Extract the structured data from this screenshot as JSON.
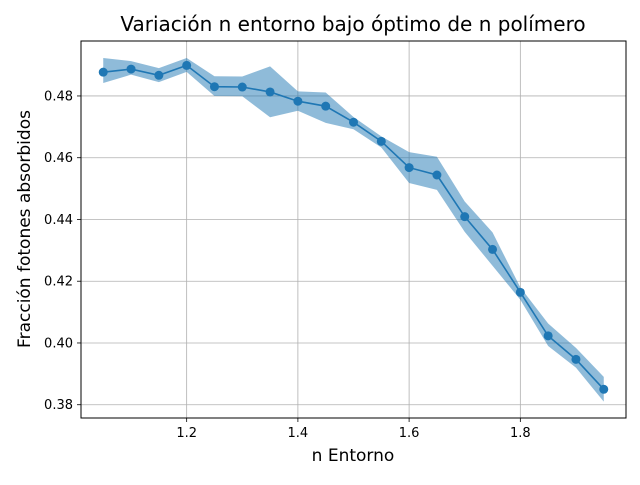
{
  "chart_data": {
    "type": "line",
    "title": "Variación n entorno bajo óptimo de n polímero",
    "xlabel": "n Entorno",
    "ylabel": "Fracción fotones absorbidos",
    "xlim": [
      1.01,
      1.99
    ],
    "ylim": [
      0.3757,
      0.4978
    ],
    "grid": true,
    "x_ticks": [
      1.2,
      1.4,
      1.6,
      1.8
    ],
    "x_tick_labels": [
      "1.2",
      "1.4",
      "1.6",
      "1.8"
    ],
    "y_ticks": [
      0.38,
      0.4,
      0.42,
      0.44,
      0.46,
      0.48
    ],
    "y_tick_labels": [
      "0.38",
      "0.40",
      "0.42",
      "0.44",
      "0.46",
      "0.48"
    ],
    "series": [
      {
        "x": [
          1.05,
          1.1,
          1.15,
          1.2,
          1.25,
          1.3,
          1.35,
          1.4,
          1.45,
          1.5,
          1.55,
          1.6,
          1.65,
          1.7,
          1.75,
          1.8,
          1.85,
          1.9,
          1.95
        ],
        "values": [
          0.4877,
          0.4887,
          0.4867,
          0.4899,
          0.483,
          0.4829,
          0.4813,
          0.4783,
          0.4767,
          0.4715,
          0.4653,
          0.4568,
          0.4544,
          0.4409,
          0.4303,
          0.4164,
          0.4023,
          0.3947,
          0.385
        ],
        "band_upper": [
          0.4923,
          0.4913,
          0.489,
          0.4923,
          0.4864,
          0.4863,
          0.4896,
          0.4815,
          0.4811,
          0.4732,
          0.4669,
          0.4618,
          0.4603,
          0.4458,
          0.4358,
          0.418,
          0.4063,
          0.3984,
          0.389
        ],
        "band_lower": [
          0.4842,
          0.4869,
          0.4845,
          0.4878,
          0.48,
          0.4799,
          0.4731,
          0.4752,
          0.4713,
          0.4692,
          0.4633,
          0.4518,
          0.4496,
          0.436,
          0.425,
          0.414,
          0.399,
          0.392,
          0.381
        ]
      }
    ]
  },
  "colors": {
    "line": "#1f77b4",
    "band": "#1f77b4",
    "grid": "#b0b0b0",
    "axes": "#000000"
  }
}
